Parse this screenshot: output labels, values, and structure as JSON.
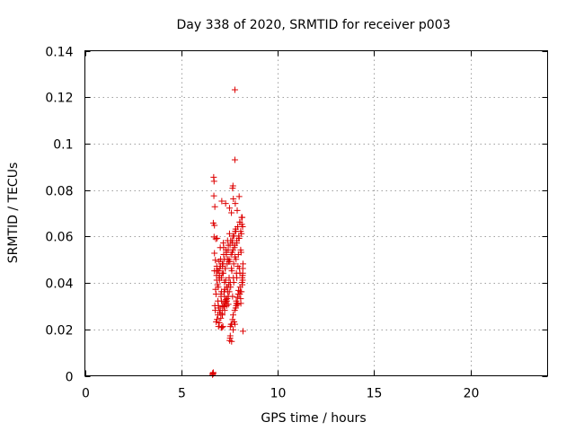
{
  "chart_data": {
    "type": "scatter",
    "title": "Day 338 of 2020, SRMTID for receiver p003",
    "xlabel": "GPS time / hours",
    "ylabel": "SRMTID / TECUs",
    "xlim": [
      0,
      24
    ],
    "ylim": [
      0,
      0.14
    ],
    "xticks": [
      0,
      5,
      10,
      15,
      20
    ],
    "yticks": [
      0,
      0.02,
      0.04,
      0.06,
      0.08,
      0.1,
      0.12,
      0.14
    ],
    "xtick_labels": [
      "0",
      "5",
      "10",
      "15",
      "20"
    ],
    "ytick_labels": [
      "0",
      "0.02",
      "0.04",
      "0.06",
      "0.08",
      "0.1",
      "0.12",
      "0.14"
    ],
    "grid": true,
    "marker": "+",
    "color": "#dd0000",
    "series": [
      {
        "name": "SRMTID",
        "x": [
          6.62,
          6.65,
          6.63,
          6.66,
          7.78,
          7.78,
          7.68,
          7.66,
          6.68,
          6.7,
          6.69,
          6.74,
          6.66,
          6.72,
          6.7,
          6.79,
          6.72,
          6.77,
          6.9,
          6.85,
          6.81,
          6.94,
          6.93,
          6.99,
          6.97,
          7.05,
          7.08,
          7.02,
          7.16,
          7.12,
          7.11,
          7.13,
          7.2,
          7.14,
          7.25,
          7.27,
          7.23,
          7.27,
          7.31,
          7.35,
          7.38,
          7.36,
          7.44,
          7.44,
          7.49,
          7.53,
          7.51,
          7.54,
          7.54,
          7.58,
          7.61,
          7.62,
          7.69,
          7.66,
          7.69,
          7.74,
          7.77,
          7.78,
          7.85,
          7.82,
          7.89,
          7.85,
          7.91,
          7.94,
          7.95,
          7.97,
          8.05,
          8.08,
          8.09,
          8.03,
          8.12,
          8.15,
          8.16,
          8.16,
          8.18,
          8.18,
          8.19,
          8.19,
          8.2,
          8.2,
          6.8,
          6.84,
          6.88,
          6.92,
          6.96,
          7.0,
          7.04,
          7.08,
          7.12,
          7.16,
          7.2,
          7.24,
          7.28,
          7.32,
          7.36,
          7.4,
          7.44,
          7.48,
          7.52,
          7.56,
          7.6,
          7.64,
          7.68,
          7.72,
          7.76,
          7.8,
          7.84,
          7.88,
          7.92,
          7.96,
          8.0,
          8.04,
          8.08,
          8.12,
          8.16,
          6.78,
          6.83,
          6.88,
          6.93,
          6.98,
          7.03,
          7.08,
          7.13,
          7.18,
          7.23,
          7.28,
          7.33,
          7.38,
          7.43,
          7.48,
          7.53,
          7.58,
          7.63,
          7.68,
          7.73,
          7.78,
          7.83,
          7.88,
          7.93,
          7.98,
          8.03,
          8.08,
          8.13,
          8.18,
          6.74,
          6.9,
          7.06,
          7.22,
          7.38,
          7.54,
          7.7,
          7.86,
          8.02,
          6.76,
          6.92,
          7.08,
          7.24,
          7.4,
          7.56,
          7.72,
          7.88,
          8.04,
          6.86,
          7.02,
          7.18,
          7.34,
          7.5,
          7.66,
          7.82,
          7.98,
          8.14,
          6.82,
          6.98,
          7.14,
          7.3,
          7.46,
          7.62,
          7.78,
          7.94,
          8.1,
          7.06,
          7.26,
          7.46,
          7.66,
          7.86,
          8.06,
          7.1,
          7.3,
          7.5,
          7.7,
          7.9,
          6.72,
          6.84,
          6.96,
          7.2,
          7.4,
          7.6,
          7.8,
          8.0
        ],
        "y": [
          0.0005,
          0.0008,
          0.0011,
          0.0014,
          0.1232,
          0.093,
          0.0818,
          0.0808,
          0.0855,
          0.0838,
          0.0775,
          0.0728,
          0.0658,
          0.0648,
          0.0598,
          0.059,
          0.0528,
          0.0498,
          0.0262,
          0.0242,
          0.0232,
          0.0292,
          0.0212,
          0.0272,
          0.0228,
          0.0248,
          0.0208,
          0.0282,
          0.0212,
          0.0268,
          0.0208,
          0.0262,
          0.0302,
          0.0298,
          0.0282,
          0.0318,
          0.0298,
          0.0312,
          0.0328,
          0.0302,
          0.0332,
          0.0322,
          0.0342,
          0.0308,
          0.0362,
          0.0162,
          0.0152,
          0.0172,
          0.0212,
          0.0222,
          0.0148,
          0.0222,
          0.0198,
          0.0242,
          0.0262,
          0.0232,
          0.0282,
          0.0222,
          0.0302,
          0.0292,
          0.0312,
          0.0322,
          0.0338,
          0.0308,
          0.0352,
          0.0368,
          0.0382,
          0.0332,
          0.0312,
          0.0352,
          0.0362,
          0.0402,
          0.0422,
          0.0392,
          0.0432,
          0.0412,
          0.0442,
          0.0462,
          0.0482,
          0.0192,
          0.0352,
          0.0412,
          0.0452,
          0.0382,
          0.0422,
          0.0462,
          0.0502,
          0.0362,
          0.0442,
          0.0482,
          0.0522,
          0.0402,
          0.0462,
          0.0542,
          0.0382,
          0.0502,
          0.0562,
          0.0422,
          0.0492,
          0.0582,
          0.0462,
          0.0532,
          0.0602,
          0.0482,
          0.0552,
          0.0622,
          0.0502,
          0.0572,
          0.0642,
          0.0522,
          0.0592,
          0.0662,
          0.0542,
          0.0612,
          0.0682,
          0.0372,
          0.0432,
          0.0392,
          0.0452,
          0.0412,
          0.0472,
          0.0422,
          0.0482,
          0.0442,
          0.0502,
          0.0462,
          0.0522,
          0.0482,
          0.0542,
          0.0502,
          0.0562,
          0.0522,
          0.0582,
          0.0542,
          0.0602,
          0.0562,
          0.0622,
          0.0582,
          0.0642,
          0.0602,
          0.0662,
          0.0622,
          0.0682,
          0.0642,
          0.0302,
          0.0322,
          0.0342,
          0.0362,
          0.0382,
          0.0402,
          0.0422,
          0.0442,
          0.0462,
          0.0282,
          0.0302,
          0.0322,
          0.0342,
          0.0362,
          0.0382,
          0.0402,
          0.0422,
          0.0442,
          0.0592,
          0.0552,
          0.0572,
          0.0532,
          0.0612,
          0.0572,
          0.0632,
          0.0592,
          0.0652,
          0.0452,
          0.0432,
          0.0472,
          0.0412,
          0.0492,
          0.0452,
          0.0512,
          0.0472,
          0.0532,
          0.0352,
          0.0372,
          0.0392,
          0.0342,
          0.0312,
          0.0362,
          0.0752,
          0.0742,
          0.0722,
          0.0762,
          0.0712,
          0.0452,
          0.0472,
          0.0492,
          0.0552,
          0.0582,
          0.0702,
          0.0742,
          0.0772
        ]
      }
    ]
  }
}
